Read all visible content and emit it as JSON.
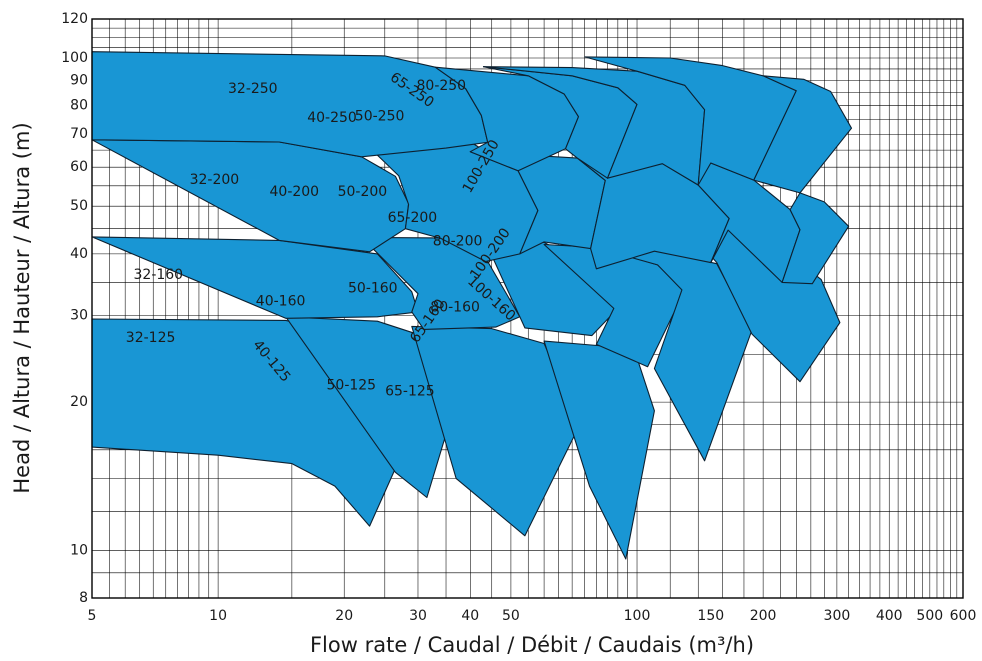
{
  "chart_data": {
    "type": "area",
    "title": "",
    "xlabel": "Flow rate / Caudal / Débit / Caudais (m³/h)",
    "ylabel": "Head / Altura / Hauteur / Altura (m)",
    "x_scale": "log",
    "y_scale": "log",
    "xlim": [
      5,
      600
    ],
    "ylim": [
      8,
      120
    ],
    "grid": true,
    "fill_color": "#1996d4",
    "outline_color": "#0d2030",
    "x_ticks": [
      {
        "value": 5,
        "label": "5"
      },
      {
        "value": 10,
        "label": "10"
      },
      {
        "value": 20,
        "label": "20"
      },
      {
        "value": 30,
        "label": "30"
      },
      {
        "value": 40,
        "label": "40"
      },
      {
        "value": 50,
        "label": "50"
      },
      {
        "value": 100,
        "label": "100"
      },
      {
        "value": 150,
        "label": "150"
      },
      {
        "value": 200,
        "label": "200"
      },
      {
        "value": 300,
        "label": "300"
      },
      {
        "value": 400,
        "label": "400"
      },
      {
        "value": 500,
        "label": "500"
      },
      {
        "value": 600,
        "label": "600"
      }
    ],
    "y_ticks": [
      {
        "value": 8,
        "label": "8"
      },
      {
        "value": 10,
        "label": "10"
      },
      {
        "value": 20,
        "label": "20"
      },
      {
        "value": 30,
        "label": "30"
      },
      {
        "value": 40,
        "label": "40"
      },
      {
        "value": 50,
        "label": "50"
      },
      {
        "value": 60,
        "label": "60"
      },
      {
        "value": 70,
        "label": "70"
      },
      {
        "value": 80,
        "label": "80"
      },
      {
        "value": 90,
        "label": "90"
      },
      {
        "value": 100,
        "label": "100"
      },
      {
        "value": 120,
        "label": "120"
      }
    ],
    "series": [
      {
        "name": "32-125",
        "label_at": [
          6.9,
          27
        ],
        "points": [
          [
            5,
            29.5
          ],
          [
            14.5,
            29.3
          ],
          [
            24,
            26.8
          ],
          [
            32,
            21
          ],
          [
            23,
            11.2
          ],
          [
            19,
            13.5
          ],
          [
            15,
            15
          ],
          [
            10,
            15.6
          ],
          [
            5,
            16.2
          ]
        ]
      },
      {
        "name": "40-125",
        "label_at": [
          13.4,
          24.2
        ],
        "rotate": 50,
        "points": [
          [
            14.5,
            29.8
          ],
          [
            24,
            29.2
          ],
          [
            31,
            27.2
          ],
          [
            38,
            21.7
          ],
          [
            31.5,
            12.8
          ],
          [
            26.5,
            14.4
          ]
        ]
      },
      {
        "name": "50-125",
        "label_at": [
          20.8,
          21.6
        ],
        "points": [
          [
            29,
            28.5
          ],
          [
            45,
            28.2
          ],
          [
            60,
            26.3
          ],
          [
            73,
            18
          ],
          [
            54,
            10.7
          ],
          [
            37,
            14
          ]
        ]
      },
      {
        "name": "65-125",
        "label_at": [
          28.7,
          21.0
        ],
        "points": [
          [
            60,
            26.6
          ],
          [
            83,
            26.0
          ],
          [
            100,
            24.6
          ],
          [
            110,
            19.2
          ],
          [
            94,
            9.6
          ],
          [
            77,
            13.5
          ]
        ]
      },
      {
        "name": "32-160",
        "label_at": [
          7.2,
          36.2
        ],
        "points": [
          [
            5,
            43.3
          ],
          [
            14,
            42.6
          ],
          [
            24,
            40
          ],
          [
            29,
            33.5
          ],
          [
            30,
            30.5
          ],
          [
            24,
            29.8
          ],
          [
            14.5,
            29.6
          ]
        ]
      },
      {
        "name": "40-160",
        "label_at": [
          14.1,
          32.0
        ],
        "points": [
          [
            22,
            43.2
          ],
          [
            34,
            43.1
          ],
          [
            44,
            38.6
          ],
          [
            52.5,
            29.8
          ],
          [
            46,
            28.4
          ],
          [
            31,
            28.1
          ],
          [
            29,
            30.5
          ],
          [
            30,
            33.2
          ]
        ]
      },
      {
        "name": "50-160",
        "label_at": [
          23.4,
          34.0
        ],
        "points": [
          [
            43,
            43.2
          ],
          [
            60,
            42.2
          ],
          [
            80,
            37
          ],
          [
            90,
            31
          ],
          [
            78,
            27.3
          ],
          [
            54,
            28.3
          ]
        ]
      },
      {
        "name": "65-160",
        "label_at": [
          31.7,
          29.2
        ],
        "rotate": -55,
        "points": [
          [
            60,
            41.8
          ],
          [
            82,
            41.2
          ],
          [
            112,
            38
          ],
          [
            130,
            33.7
          ],
          [
            106,
            23.6
          ],
          [
            80,
            26.2
          ],
          [
            88,
            31
          ]
        ]
      },
      {
        "name": "80-160",
        "label_at": [
          36.8,
          31.1
        ],
        "points": [
          [
            80,
            41.2
          ],
          [
            112,
            40.6
          ],
          [
            155,
            38.2
          ],
          [
            188,
            28
          ],
          [
            145,
            15.2
          ],
          [
            110,
            23.4
          ],
          [
            128,
            33.8
          ],
          [
            112,
            38
          ]
        ]
      },
      {
        "name": "100-160",
        "label_at": [
          44.9,
          32.4
        ],
        "rotate": 42,
        "points": [
          [
            130,
            45.5
          ],
          [
            165,
            44.8
          ],
          [
            210,
            42.4
          ],
          [
            275,
            35.5
          ],
          [
            305,
            29
          ],
          [
            245,
            22
          ],
          [
            188,
            27.5
          ],
          [
            155,
            38.4
          ]
        ]
      },
      {
        "name": "32-200",
        "label_at": [
          9.8,
          56.5
        ],
        "points": [
          [
            5,
            68.2
          ],
          [
            14,
            67.5
          ],
          [
            22,
            63
          ],
          [
            26.5,
            57.5
          ],
          [
            28.5,
            50.6
          ],
          [
            28,
            45
          ],
          [
            23,
            40.4
          ],
          [
            14,
            42.6
          ]
        ]
      },
      {
        "name": "40-200",
        "label_at": [
          15.2,
          53.4
        ],
        "points": [
          [
            22,
            68.2
          ],
          [
            40,
            67.5
          ],
          [
            52,
            59
          ],
          [
            58,
            49
          ],
          [
            52.5,
            40
          ],
          [
            43.5,
            38.6
          ],
          [
            34,
            43
          ],
          [
            28,
            45
          ],
          [
            28.5,
            50.4
          ],
          [
            27,
            57.6
          ]
        ]
      },
      {
        "name": "50-200",
        "label_at": [
          22.1,
          53.4
        ],
        "points": [
          [
            40,
            64.5
          ],
          [
            72,
            62.6
          ],
          [
            84,
            56.4
          ],
          [
            77.5,
            41
          ],
          [
            60,
            42.3
          ],
          [
            52.5,
            40
          ],
          [
            58,
            49
          ],
          [
            52,
            59
          ]
        ]
      },
      {
        "name": "65-200",
        "label_at": [
          29.1,
          47.3
        ],
        "points": [
          [
            72,
            62.6
          ],
          [
            115,
            61
          ],
          [
            140,
            55.2
          ],
          [
            166,
            47.2
          ],
          [
            150,
            38.4
          ],
          [
            110,
            40.5
          ],
          [
            80,
            37.3
          ],
          [
            77.5,
            41
          ],
          [
            84,
            56.4
          ]
        ]
      },
      {
        "name": "80-200",
        "label_at": [
          37.3,
          42.4
        ],
        "points": [
          [
            112,
            62.4
          ],
          [
            150,
            61.2
          ],
          [
            190,
            56.5
          ],
          [
            232,
            49.2
          ],
          [
            245,
            44.8
          ],
          [
            222,
            35
          ],
          [
            165,
            44.7
          ],
          [
            150,
            38.4
          ],
          [
            166,
            47.2
          ],
          [
            140,
            55.2
          ]
        ]
      },
      {
        "name": "100-200",
        "label_at": [
          44.7,
          40.0
        ],
        "rotate": -55,
        "points": [
          [
            245,
            53.2
          ],
          [
            280,
            51
          ],
          [
            320,
            45.5
          ],
          [
            262,
            34.8
          ],
          [
            222,
            35
          ],
          [
            245,
            44.8
          ],
          [
            232,
            49.2
          ]
        ]
      },
      {
        "name": "32-250",
        "label_at": [
          12.1,
          86.5
        ],
        "points": [
          [
            5,
            103
          ],
          [
            25,
            101
          ],
          [
            33,
            95.8
          ],
          [
            39,
            86.6
          ],
          [
            42.5,
            76.5
          ],
          [
            44,
            67.4
          ],
          [
            35,
            65.6
          ],
          [
            22,
            63
          ],
          [
            14,
            67.5
          ],
          [
            5,
            68.2
          ]
        ]
      },
      {
        "name": "40-250",
        "label_at": [
          18.7,
          75.5
        ],
        "points": [
          [
            33,
            95.8
          ],
          [
            55,
            92
          ],
          [
            67,
            84.5
          ],
          [
            72.5,
            76
          ],
          [
            67.5,
            65.4
          ],
          [
            52,
            59
          ],
          [
            40,
            64.5
          ],
          [
            44,
            67.4
          ],
          [
            42.5,
            76.5
          ],
          [
            39,
            86.6
          ]
        ]
      },
      {
        "name": "50-250",
        "label_at": [
          24.3,
          76.1
        ],
        "points": [
          [
            43,
            96
          ],
          [
            70,
            92
          ],
          [
            90,
            87
          ],
          [
            100,
            80.5
          ],
          [
            85,
            57
          ],
          [
            72,
            62.6
          ],
          [
            67.5,
            65.4
          ],
          [
            72.5,
            76
          ],
          [
            67,
            84.5
          ],
          [
            55,
            92
          ]
        ]
      },
      {
        "name": "65-250",
        "label_at": [
          29.0,
          86.0
        ],
        "rotate": 35,
        "points": [
          [
            43,
            96
          ],
          [
            70,
            95.6
          ],
          [
            100,
            94
          ],
          [
            130,
            88
          ],
          [
            145,
            78.5
          ],
          [
            140,
            55.2
          ],
          [
            115,
            61
          ],
          [
            85,
            57
          ],
          [
            100,
            80.5
          ],
          [
            90,
            87
          ],
          [
            70,
            92
          ]
        ]
      },
      {
        "name": "80-250",
        "label_at": [
          34.1,
          87.8
        ],
        "points": [
          [
            75,
            100.5
          ],
          [
            120,
            100
          ],
          [
            160,
            96.5
          ],
          [
            200,
            92
          ],
          [
            240,
            85.8
          ],
          [
            190,
            56.5
          ],
          [
            150,
            61.2
          ],
          [
            140,
            55.2
          ],
          [
            145,
            78.5
          ],
          [
            130,
            88
          ],
          [
            100,
            94
          ]
        ]
      },
      {
        "name": "100-250",
        "label_at": [
          42.5,
          60.2
        ],
        "rotate": -60,
        "points": [
          [
            200,
            92
          ],
          [
            250,
            90.5
          ],
          [
            290,
            85.5
          ],
          [
            325,
            72
          ],
          [
            245,
            53.2
          ],
          [
            190,
            56.5
          ],
          [
            240,
            85.8
          ]
        ]
      }
    ]
  }
}
